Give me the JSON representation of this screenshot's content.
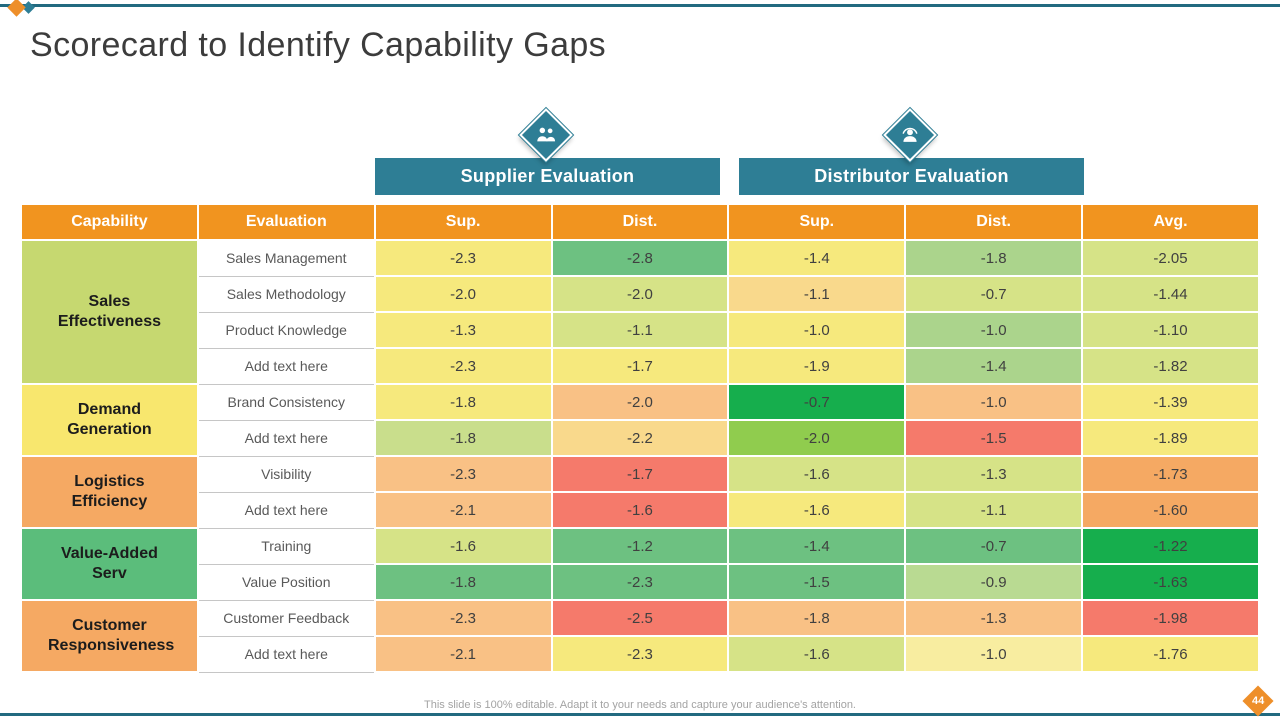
{
  "slide": {
    "title": "Scorecard to Identify Capability Gaps",
    "footer_note": "This slide is 100% editable. Adapt it to your needs and capture your audience's attention.",
    "page_number": "44"
  },
  "colors": {
    "accent_teal": "#2e7e95",
    "accent_orange": "#f1941f",
    "line_teal": "#226a80"
  },
  "banners": [
    {
      "label": "Supplier Evaluation",
      "icon": "partnership-people-icon"
    },
    {
      "label": "Distributor Evaluation",
      "icon": "distributor-person-icon"
    }
  ],
  "table": {
    "headers": [
      "Capability",
      "Evaluation",
      "Sup.",
      "Dist.",
      "Sup.",
      "Dist.",
      "Avg."
    ],
    "groups": [
      {
        "capability": "Sales Effectiveness",
        "color": "#c6d870",
        "rows": [
          {
            "evaluation": "Sales Management",
            "values": [
              {
                "value": "-2.3",
                "color": "#f6e97d"
              },
              {
                "value": "-2.8",
                "color": "#6dc181"
              },
              {
                "value": "-1.4",
                "color": "#f6e97d"
              },
              {
                "value": "-1.8",
                "color": "#abd48c"
              },
              {
                "value": "-2.05",
                "color": "#d6e387"
              }
            ]
          },
          {
            "evaluation": "Sales Methodology",
            "values": [
              {
                "value": "-2.0",
                "color": "#f6e97d"
              },
              {
                "value": "-2.0",
                "color": "#d6e387"
              },
              {
                "value": "-1.1",
                "color": "#f9d98c"
              },
              {
                "value": "-0.7",
                "color": "#d6e387"
              },
              {
                "value": "-1.44",
                "color": "#d6e387"
              }
            ]
          },
          {
            "evaluation": "Product Knowledge",
            "values": [
              {
                "value": "-1.3",
                "color": "#f6e97d"
              },
              {
                "value": "-1.1",
                "color": "#d6e387"
              },
              {
                "value": "-1.0",
                "color": "#f6e97d"
              },
              {
                "value": "-1.0",
                "color": "#abd48c"
              },
              {
                "value": "-1.10",
                "color": "#d6e387"
              }
            ]
          },
          {
            "evaluation": "Add text here",
            "values": [
              {
                "value": "-2.3",
                "color": "#f6e97d"
              },
              {
                "value": "-1.7",
                "color": "#f6e97d"
              },
              {
                "value": "-1.9",
                "color": "#f6e97d"
              },
              {
                "value": "-1.4",
                "color": "#abd48c"
              },
              {
                "value": "-1.82",
                "color": "#d6e387"
              }
            ]
          }
        ]
      },
      {
        "capability": "Demand Generation",
        "color": "#f8e76e",
        "rows": [
          {
            "evaluation": "Brand Consistency",
            "values": [
              {
                "value": "-1.8",
                "color": "#f6e97d"
              },
              {
                "value": "-2.0",
                "color": "#f9c185"
              },
              {
                "value": "-0.7",
                "color": "#16ae4d"
              },
              {
                "value": "-1.0",
                "color": "#f9c185"
              },
              {
                "value": "-1.39",
                "color": "#f6e97d"
              }
            ]
          },
          {
            "evaluation": "Add text here",
            "values": [
              {
                "value": "-1.8",
                "color": "#c9de8c"
              },
              {
                "value": "-2.2",
                "color": "#f9d98c"
              },
              {
                "value": "-2.0",
                "color": "#90cc4e"
              },
              {
                "value": "-1.5",
                "color": "#f57a6b"
              },
              {
                "value": "-1.89",
                "color": "#f6e97d"
              }
            ]
          }
        ]
      },
      {
        "capability": "Logistics Efficiency",
        "color": "#f5a963",
        "rows": [
          {
            "evaluation": "Visibility",
            "values": [
              {
                "value": "-2.3",
                "color": "#f9c185"
              },
              {
                "value": "-1.7",
                "color": "#f57a6b"
              },
              {
                "value": "-1.6",
                "color": "#d6e387"
              },
              {
                "value": "-1.3",
                "color": "#d6e387"
              },
              {
                "value": "-1.73",
                "color": "#f5a963"
              }
            ]
          },
          {
            "evaluation": "Add text here",
            "values": [
              {
                "value": "-2.1",
                "color": "#f9c185"
              },
              {
                "value": "-1.6",
                "color": "#f57a6b"
              },
              {
                "value": "-1.6",
                "color": "#f6e97d"
              },
              {
                "value": "-1.1",
                "color": "#d6e387"
              },
              {
                "value": "-1.60",
                "color": "#f5a963"
              }
            ]
          }
        ]
      },
      {
        "capability": "Value-Added Serv",
        "color": "#5bbd7b",
        "rows": [
          {
            "evaluation": "Training",
            "values": [
              {
                "value": "-1.6",
                "color": "#d6e387"
              },
              {
                "value": "-1.2",
                "color": "#6dc181"
              },
              {
                "value": "-1.4",
                "color": "#6dc181"
              },
              {
                "value": "-0.7",
                "color": "#6dc181"
              },
              {
                "value": "-1.22",
                "color": "#16ae4d"
              }
            ]
          },
          {
            "evaluation": "Value Position",
            "values": [
              {
                "value": "-1.8",
                "color": "#6dc181"
              },
              {
                "value": "-2.3",
                "color": "#6dc181"
              },
              {
                "value": "-1.5",
                "color": "#6dc181"
              },
              {
                "value": "-0.9",
                "color": "#b9da92"
              },
              {
                "value": "-1.63",
                "color": "#16ae4d"
              }
            ]
          }
        ]
      },
      {
        "capability": "Customer Responsiveness",
        "color": "#f5a963",
        "rows": [
          {
            "evaluation": "Customer Feedback",
            "values": [
              {
                "value": "-2.3",
                "color": "#f9c185"
              },
              {
                "value": "-2.5",
                "color": "#f57a6b"
              },
              {
                "value": "-1.8",
                "color": "#f9c185"
              },
              {
                "value": "-1.3",
                "color": "#f9c185"
              },
              {
                "value": "-1.98",
                "color": "#f57a6b"
              }
            ]
          },
          {
            "evaluation": "Add text here",
            "values": [
              {
                "value": "-2.1",
                "color": "#f9c185"
              },
              {
                "value": "-2.3",
                "color": "#f6e97d"
              },
              {
                "value": "-1.6",
                "color": "#d6e387"
              },
              {
                "value": "-1.0",
                "color": "#f8eda0"
              },
              {
                "value": "-1.76",
                "color": "#f6e97d"
              }
            ]
          }
        ]
      }
    ]
  }
}
